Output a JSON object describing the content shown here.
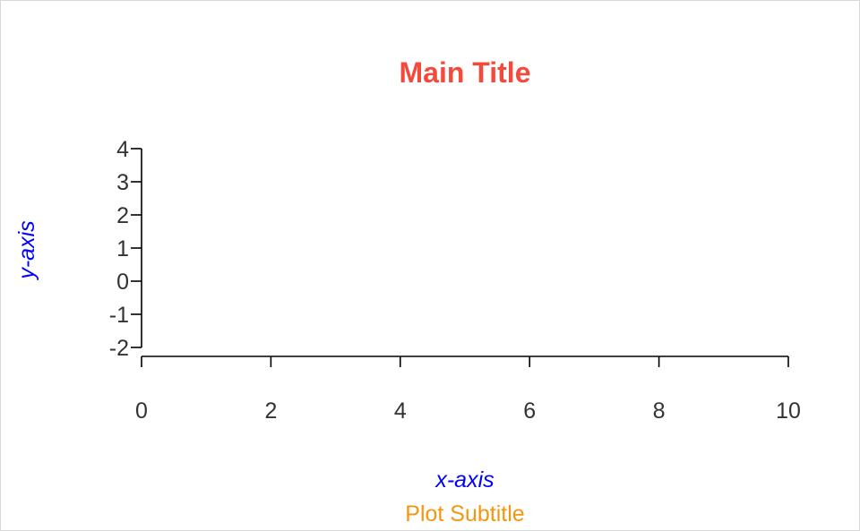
{
  "chart_data": {
    "type": "scatter",
    "title": "Main Title",
    "subtitle": "Plot Subtitle",
    "xlabel": "x-axis",
    "ylabel": "y-axis",
    "xlim": [
      0,
      10
    ],
    "ylim": [
      -2,
      4
    ],
    "x_ticks": [
      0,
      2,
      4,
      6,
      8,
      10
    ],
    "y_ticks": [
      -2,
      -1,
      0,
      1,
      2,
      3,
      4
    ],
    "x": [],
    "y": [],
    "grid": false,
    "colors": {
      "title": "#f44a3c",
      "axis_titles": "#0000ff",
      "subtitle": "#f5960f"
    }
  }
}
